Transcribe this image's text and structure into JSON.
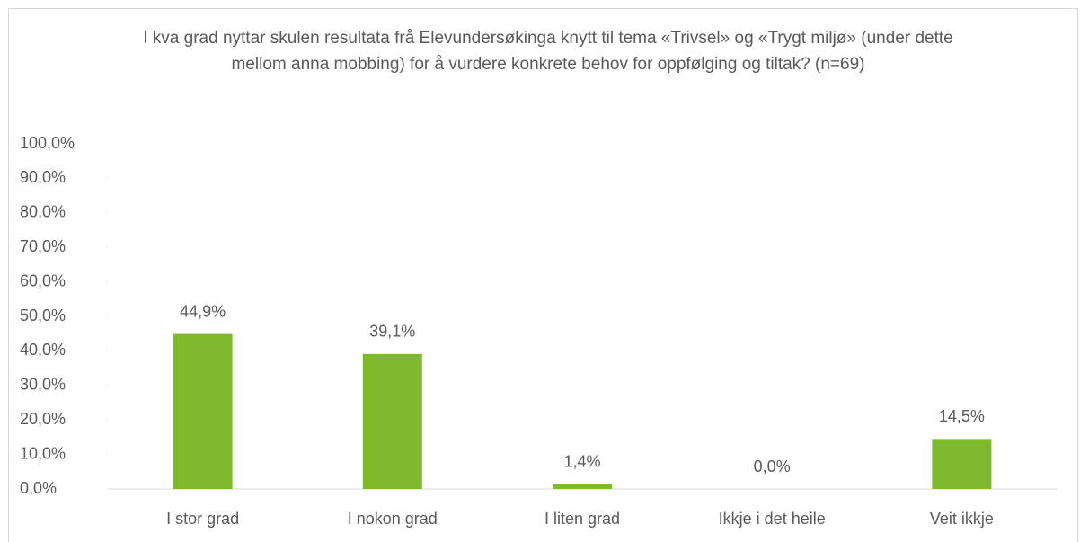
{
  "chart_data": {
    "type": "bar",
    "title": "I kva grad nyttar skulen resultata frå Elevundersøkinga knytt til tema «Trivsel» og «Trygt miljø» (under dette mellom anna mobbing) for å vurdere konkrete behov for oppfølging og tiltak? (n=69)",
    "categories": [
      "I stor grad",
      "I nokon grad",
      "I liten grad",
      "Ikkje i det heile",
      "Veit ikkje"
    ],
    "values": [
      44.9,
      39.1,
      1.4,
      0.0,
      14.5
    ],
    "value_labels": [
      "44,9%",
      "39,1%",
      "1,4%",
      "0,0%",
      "14,5%"
    ],
    "color": "#7fba2c",
    "ylim": [
      0,
      100
    ],
    "yticks": [
      {
        "value": 0,
        "label": "0,0%"
      },
      {
        "value": 10,
        "label": "10,0%"
      },
      {
        "value": 20,
        "label": "20,0%"
      },
      {
        "value": 30,
        "label": "30,0%"
      },
      {
        "value": 40,
        "label": "40,0%"
      },
      {
        "value": 50,
        "label": "50,0%"
      },
      {
        "value": 60,
        "label": "60,0%"
      },
      {
        "value": 70,
        "label": "70,0%"
      },
      {
        "value": 80,
        "label": "80,0%"
      },
      {
        "value": 90,
        "label": "90,0%"
      },
      {
        "value": 100,
        "label": "100,0%"
      }
    ],
    "grid": false
  }
}
